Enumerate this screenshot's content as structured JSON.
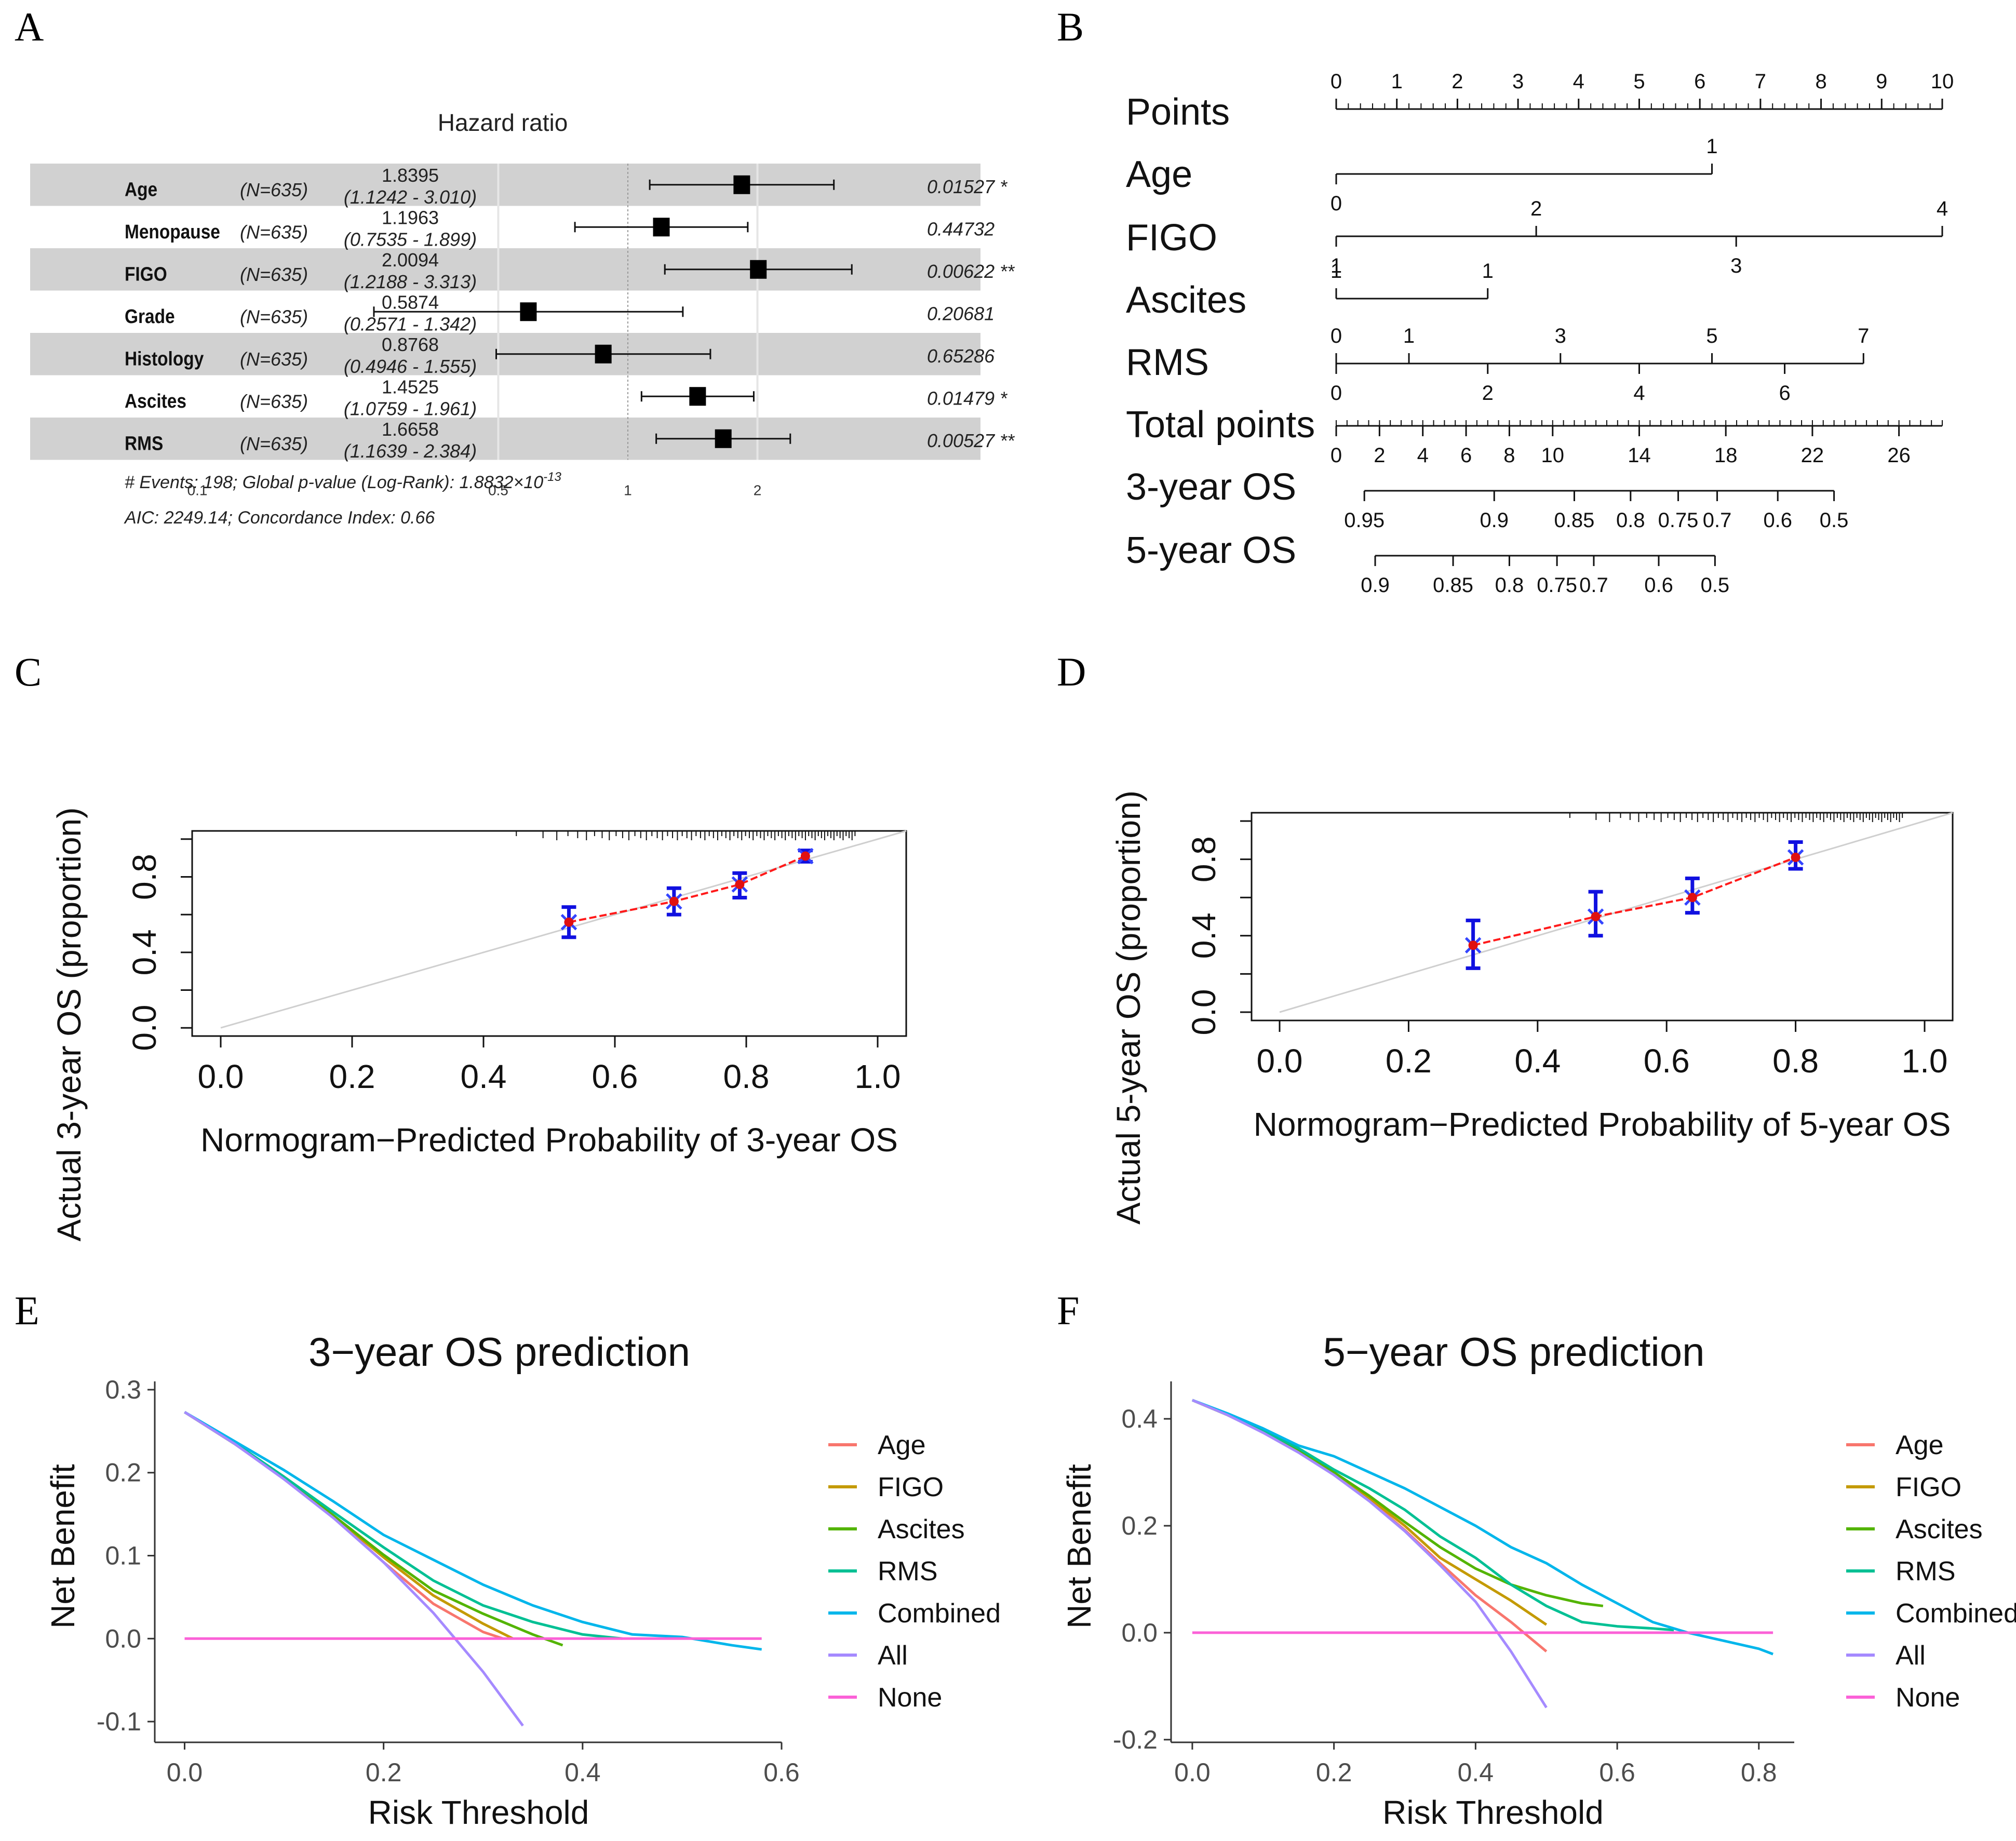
{
  "chart_data": [
    {
      "panel": "A",
      "type": "forest",
      "title": "Hazard ratio",
      "axis_ticks": [
        "0.1",
        "0.5",
        "1",
        "2"
      ],
      "rows": [
        {
          "variable": "Age",
          "n": "(N=635)",
          "hr": "1.8395",
          "ci": "(1.1242 - 3.010)",
          "p": "0.01527 *",
          "value": 1.8395,
          "lower": 1.1242,
          "upper": 3.01
        },
        {
          "variable": "Menopause",
          "n": "(N=635)",
          "hr": "1.1963",
          "ci": "(0.7535 - 1.899)",
          "p": "0.44732",
          "value": 1.1963,
          "lower": 0.7535,
          "upper": 1.899
        },
        {
          "variable": "FIGO",
          "n": "(N=635)",
          "hr": "2.0094",
          "ci": "(1.2188 - 3.313)",
          "p": "0.00622 **",
          "value": 2.0094,
          "lower": 1.2188,
          "upper": 3.313
        },
        {
          "variable": "Grade",
          "n": "(N=635)",
          "hr": "0.5874",
          "ci": "(0.2571 - 1.342)",
          "p": "0.20681",
          "value": 0.5874,
          "lower": 0.2571,
          "upper": 1.342
        },
        {
          "variable": "Histology",
          "n": "(N=635)",
          "hr": "0.8768",
          "ci": "(0.4946 - 1.555)",
          "p": "0.65286",
          "value": 0.8768,
          "lower": 0.4946,
          "upper": 1.555
        },
        {
          "variable": "Ascites",
          "n": "(N=635)",
          "hr": "1.4525",
          "ci": "(1.0759 - 1.961)",
          "p": "0.01479 *",
          "value": 1.4525,
          "lower": 1.0759,
          "upper": 1.961
        },
        {
          "variable": "RMS",
          "n": "(N=635)",
          "hr": "1.6658",
          "ci": "(1.1639 - 2.384)",
          "p": "0.00527 **",
          "value": 1.6658,
          "lower": 1.1639,
          "upper": 2.384
        }
      ],
      "footer1_pre": "# Events: 198; Global p-value (Log-Rank): 1.8832×10",
      "footer1_exp": "-13",
      "footer2": "AIC: 2249.14; Concordance Index: 0.66"
    },
    {
      "panel": "B",
      "type": "nomogram",
      "rows": [
        {
          "label": "Points",
          "range": [
            0,
            10
          ],
          "ticks_above": [
            {
              "v": 0,
              "t": "0"
            },
            {
              "v": 1,
              "t": "1"
            },
            {
              "v": 2,
              "t": "2"
            },
            {
              "v": 3,
              "t": "3"
            },
            {
              "v": 4,
              "t": "4"
            },
            {
              "v": 5,
              "t": "5"
            },
            {
              "v": 6,
              "t": "6"
            },
            {
              "v": 7,
              "t": "7"
            },
            {
              "v": 8,
              "t": "8"
            },
            {
              "v": 9,
              "t": "9"
            },
            {
              "v": 10,
              "t": "10"
            }
          ],
          "ticks_below": [],
          "minor_step": 0.2
        },
        {
          "label": "Age",
          "range": [
            0,
            6.2
          ],
          "ticks_above": [
            {
              "v": 6.2,
              "t": "1"
            }
          ],
          "ticks_below": [
            {
              "v": 0,
              "t": "0"
            }
          ]
        },
        {
          "label": "FIGO",
          "range": [
            0,
            10
          ],
          "ticks_above": [
            {
              "v": 3.3,
              "t": "2"
            },
            {
              "v": 10,
              "t": "4"
            }
          ],
          "ticks_below": [
            {
              "v": 0,
              "t": "1"
            },
            {
              "v": 6.6,
              "t": "3"
            }
          ]
        },
        {
          "label": "Ascites",
          "range": [
            0,
            2.5
          ],
          "ticks_above": [
            {
              "v": 0,
              "t": "1"
            },
            {
              "v": 2.5,
              "t": "1"
            }
          ],
          "ticks_below": []
        },
        {
          "label": "RMS",
          "range": [
            0,
            8.7
          ],
          "ticks_above": [
            {
              "v": 0,
              "t": "0"
            },
            {
              "v": 1.2,
              "t": "1"
            },
            {
              "v": 3.7,
              "t": "3"
            },
            {
              "v": 6.2,
              "t": "5"
            },
            {
              "v": 8.7,
              "t": "7"
            }
          ],
          "ticks_below": [
            {
              "v": 0,
              "t": "0"
            },
            {
              "v": 2.5,
              "t": "2"
            },
            {
              "v": 5.0,
              "t": "4"
            },
            {
              "v": 7.4,
              "t": "6"
            }
          ]
        },
        {
          "label": "Total points",
          "range": [
            0,
            28
          ],
          "ticks_above": [],
          "ticks_below": [
            {
              "v": 0,
              "t": "0"
            },
            {
              "v": 2,
              "t": "2"
            },
            {
              "v": 4,
              "t": "4"
            },
            {
              "v": 6,
              "t": "6"
            },
            {
              "v": 8,
              "t": "8"
            },
            {
              "v": 10,
              "t": "10"
            },
            {
              "v": 14,
              "t": "14"
            },
            {
              "v": 18,
              "t": "18"
            },
            {
              "v": 22,
              "t": "22"
            },
            {
              "v": 26,
              "t": "26"
            }
          ],
          "minor_step": 0.5
        },
        {
          "label": "3-year OS",
          "range": [
            1.3,
            23.0
          ],
          "ticks_above": [],
          "ticks_below": [
            {
              "v": 1.3,
              "t": "0.95"
            },
            {
              "v": 7.3,
              "t": "0.9"
            },
            {
              "v": 11.0,
              "t": "0.85"
            },
            {
              "v": 13.6,
              "t": "0.8"
            },
            {
              "v": 15.8,
              "t": "0.75"
            },
            {
              "v": 17.6,
              "t": "0.7"
            },
            {
              "v": 20.4,
              "t": "0.6"
            },
            {
              "v": 23.0,
              "t": "0.5"
            }
          ]
        },
        {
          "label": "5-year OS",
          "range": [
            1.8,
            17.5
          ],
          "ticks_above": [],
          "ticks_below": [
            {
              "v": 1.8,
              "t": "0.9"
            },
            {
              "v": 5.4,
              "t": "0.85"
            },
            {
              "v": 8.0,
              "t": "0.8"
            },
            {
              "v": 10.2,
              "t": "0.75"
            },
            {
              "v": 11.9,
              "t": "0.7"
            },
            {
              "v": 14.9,
              "t": "0.6"
            },
            {
              "v": 17.5,
              "t": "0.5"
            }
          ]
        }
      ]
    },
    {
      "panel": "C",
      "type": "calibration",
      "xlabel": "Normogram−Predicted Probability of 3-year OS",
      "ylabel": "Actual 3-year OS (proportion)",
      "xlim": [
        0,
        1
      ],
      "ylim": [
        0,
        1
      ],
      "xticks": [
        "0.0",
        "0.2",
        "0.4",
        "0.6",
        "0.8",
        "1.0"
      ],
      "yticks": [
        "0.0",
        "0.4",
        "0.8"
      ],
      "points": [
        {
          "x": 0.53,
          "y": 0.56,
          "lo": 0.48,
          "hi": 0.64
        },
        {
          "x": 0.69,
          "y": 0.67,
          "lo": 0.6,
          "hi": 0.74
        },
        {
          "x": 0.79,
          "y": 0.76,
          "lo": 0.69,
          "hi": 0.82
        },
        {
          "x": 0.89,
          "y": 0.91,
          "lo": 0.88,
          "hi": 0.94
        }
      ]
    },
    {
      "panel": "D",
      "type": "calibration",
      "xlabel": "Normogram−Predicted Probability of 5-year OS",
      "ylabel": "Actual 5-year OS (proportion)",
      "xlim": [
        0,
        1
      ],
      "ylim": [
        0,
        1
      ],
      "xticks": [
        "0.0",
        "0.2",
        "0.4",
        "0.6",
        "0.8",
        "1.0"
      ],
      "yticks": [
        "0.0",
        "0.4",
        "0.8"
      ],
      "points": [
        {
          "x": 0.3,
          "y": 0.35,
          "lo": 0.23,
          "hi": 0.48
        },
        {
          "x": 0.49,
          "y": 0.5,
          "lo": 0.4,
          "hi": 0.63
        },
        {
          "x": 0.64,
          "y": 0.6,
          "lo": 0.52,
          "hi": 0.7
        },
        {
          "x": 0.8,
          "y": 0.81,
          "lo": 0.75,
          "hi": 0.89
        }
      ]
    },
    {
      "panel": "E",
      "type": "line",
      "title": "3−year OS prediction",
      "xlabel": "Risk Threshold",
      "ylabel": "Net Benefit",
      "xlim": [
        -0.03,
        0.6
      ],
      "ylim": [
        -0.125,
        0.31
      ],
      "xticks": [
        0.0,
        0.2,
        0.4,
        0.6
      ],
      "xtick_labels": [
        "0.0",
        "0.2",
        "0.4",
        "0.6"
      ],
      "yticks": [
        -0.1,
        0.0,
        0.1,
        0.2,
        0.3
      ],
      "ytick_labels": [
        "-0.1",
        "0.0",
        "0.1",
        "0.2",
        "0.3"
      ],
      "series": [
        {
          "name": "Age",
          "color": "#F8766D",
          "x": [
            0.0,
            0.05,
            0.1,
            0.15,
            0.2,
            0.25,
            0.3,
            0.32
          ],
          "y": [
            0.273,
            0.235,
            0.193,
            0.146,
            0.092,
            0.042,
            0.008,
            0.0
          ]
        },
        {
          "name": "FIGO",
          "color": "#C49A00",
          "x": [
            0.0,
            0.05,
            0.1,
            0.15,
            0.2,
            0.25,
            0.3,
            0.33
          ],
          "y": [
            0.273,
            0.235,
            0.193,
            0.147,
            0.098,
            0.052,
            0.018,
            0.0
          ]
        },
        {
          "name": "Ascites",
          "color": "#53B400",
          "x": [
            0.0,
            0.05,
            0.1,
            0.15,
            0.2,
            0.25,
            0.3,
            0.35,
            0.38
          ],
          "y": [
            0.273,
            0.235,
            0.193,
            0.148,
            0.101,
            0.058,
            0.03,
            0.005,
            -0.008
          ]
        },
        {
          "name": "RMS",
          "color": "#00C094",
          "x": [
            0.0,
            0.05,
            0.1,
            0.15,
            0.2,
            0.25,
            0.3,
            0.35,
            0.4,
            0.44
          ],
          "y": [
            0.273,
            0.236,
            0.195,
            0.152,
            0.11,
            0.07,
            0.04,
            0.02,
            0.005,
            0.0
          ]
        },
        {
          "name": "Combined",
          "color": "#00B6EB",
          "x": [
            0.0,
            0.05,
            0.1,
            0.15,
            0.2,
            0.25,
            0.3,
            0.35,
            0.4,
            0.45,
            0.5,
            0.55,
            0.58
          ],
          "y": [
            0.273,
            0.238,
            0.203,
            0.165,
            0.125,
            0.095,
            0.065,
            0.04,
            0.02,
            0.005,
            0.002,
            -0.008,
            -0.013
          ]
        },
        {
          "name": "All",
          "color": "#A58AFF",
          "x": [
            0.0,
            0.05,
            0.1,
            0.15,
            0.2,
            0.25,
            0.3,
            0.34
          ],
          "y": [
            0.273,
            0.235,
            0.192,
            0.145,
            0.092,
            0.031,
            -0.04,
            -0.105
          ]
        },
        {
          "name": "None",
          "color": "#FB61D7",
          "x": [
            0.0,
            0.58
          ],
          "y": [
            0.0,
            0.0
          ]
        }
      ]
    },
    {
      "panel": "F",
      "type": "line",
      "title": "5−year OS prediction",
      "xlabel": "Risk Threshold",
      "ylabel": "Net Benefit",
      "xlim": [
        -0.03,
        0.85
      ],
      "ylim": [
        -0.205,
        0.47
      ],
      "xticks": [
        0.0,
        0.2,
        0.4,
        0.6,
        0.8
      ],
      "xtick_labels": [
        "0.0",
        "0.2",
        "0.4",
        "0.6",
        "0.8"
      ],
      "yticks": [
        -0.2,
        0.0,
        0.2,
        0.4
      ],
      "ytick_labels": [
        "-0.2",
        "0.0",
        "0.2",
        "0.4"
      ],
      "series": [
        {
          "name": "Age",
          "color": "#F8766D",
          "x": [
            0.0,
            0.05,
            0.1,
            0.15,
            0.2,
            0.25,
            0.3,
            0.35,
            0.4,
            0.45,
            0.5
          ],
          "y": [
            0.435,
            0.407,
            0.375,
            0.338,
            0.296,
            0.248,
            0.192,
            0.13,
            0.07,
            0.02,
            -0.035
          ]
        },
        {
          "name": "FIGO",
          "color": "#C49A00",
          "x": [
            0.0,
            0.05,
            0.1,
            0.15,
            0.2,
            0.25,
            0.3,
            0.35,
            0.4,
            0.45,
            0.5
          ],
          "y": [
            0.435,
            0.407,
            0.375,
            0.339,
            0.298,
            0.252,
            0.2,
            0.14,
            0.1,
            0.06,
            0.015
          ]
        },
        {
          "name": "Ascites",
          "color": "#53B400",
          "x": [
            0.0,
            0.05,
            0.1,
            0.15,
            0.2,
            0.25,
            0.3,
            0.35,
            0.4,
            0.45,
            0.5,
            0.55,
            0.58
          ],
          "y": [
            0.435,
            0.407,
            0.375,
            0.34,
            0.3,
            0.256,
            0.207,
            0.16,
            0.12,
            0.09,
            0.07,
            0.055,
            0.05
          ]
        },
        {
          "name": "RMS",
          "color": "#00C094",
          "x": [
            0.0,
            0.05,
            0.1,
            0.15,
            0.2,
            0.25,
            0.3,
            0.35,
            0.4,
            0.45,
            0.5,
            0.55,
            0.6,
            0.65,
            0.68
          ],
          "y": [
            0.435,
            0.408,
            0.378,
            0.345,
            0.305,
            0.27,
            0.23,
            0.18,
            0.14,
            0.09,
            0.05,
            0.02,
            0.012,
            0.008,
            0.005
          ]
        },
        {
          "name": "Combined",
          "color": "#00B6EB",
          "x": [
            0.0,
            0.05,
            0.1,
            0.15,
            0.2,
            0.25,
            0.3,
            0.35,
            0.4,
            0.45,
            0.5,
            0.55,
            0.6,
            0.65,
            0.7,
            0.75,
            0.8,
            0.82
          ],
          "y": [
            0.435,
            0.41,
            0.382,
            0.35,
            0.33,
            0.3,
            0.27,
            0.235,
            0.2,
            0.16,
            0.13,
            0.09,
            0.055,
            0.02,
            0.0,
            -0.015,
            -0.03,
            -0.04
          ]
        },
        {
          "name": "All",
          "color": "#A58AFF",
          "x": [
            0.0,
            0.05,
            0.1,
            0.15,
            0.2,
            0.25,
            0.3,
            0.35,
            0.4,
            0.45,
            0.5
          ],
          "y": [
            0.435,
            0.407,
            0.374,
            0.337,
            0.295,
            0.246,
            0.19,
            0.126,
            0.058,
            -0.035,
            -0.14
          ]
        },
        {
          "name": "None",
          "color": "#FB61D7",
          "x": [
            0.0,
            0.82
          ],
          "y": [
            0.0,
            0.0
          ]
        }
      ]
    }
  ],
  "panel_letters": [
    "A",
    "B",
    "C",
    "D",
    "E",
    "F"
  ]
}
